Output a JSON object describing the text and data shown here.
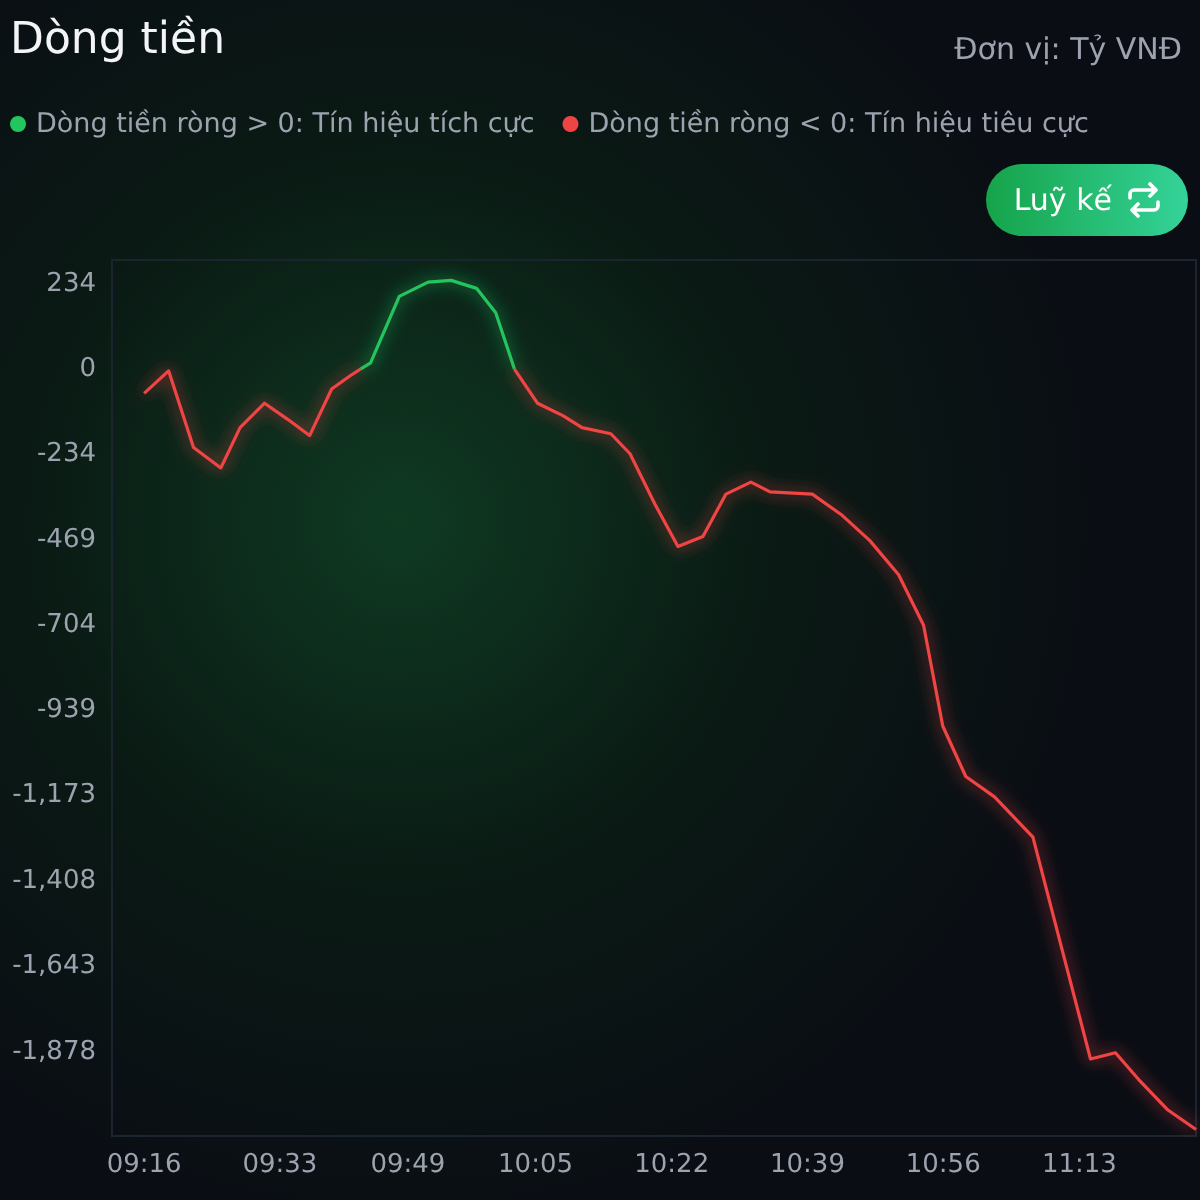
{
  "chart_data": {
    "type": "line",
    "title": "Dòng tiền",
    "annotations": [
      "Đơn vị: Tỷ VNĐ",
      "Luỹ kế"
    ],
    "series": [
      {
        "name": "Dòng tiền ròng > 0: Tín hiệu tích cực",
        "color": "#22c55e",
        "x": [
          9.718,
          9.739,
          9.799,
          9.859,
          9.907,
          9.96,
          10.0,
          10.039
        ],
        "values": [
          0,
          17,
          200,
          239,
          244,
          222,
          155,
          0
        ]
      },
      {
        "name": "Dòng tiền ròng < 0: Tín hiệu tiêu cực",
        "color": "#ef4444",
        "x": [
          9.267,
          9.318,
          9.37,
          9.427,
          9.467,
          9.518,
          9.567,
          9.612,
          9.658,
          9.698,
          9.718,
          9.9,
          10.039,
          10.087,
          10.14,
          10.18,
          10.24,
          10.28,
          10.332,
          10.38,
          10.432,
          10.48,
          10.532,
          10.572,
          10.66,
          10.72,
          10.78,
          10.84,
          10.892,
          10.932,
          10.98,
          11.04,
          11.12,
          11.18,
          11.24,
          11.292,
          11.34,
          11.4,
          11.46
        ],
        "values": [
          -67,
          -5,
          -216,
          -272,
          -161,
          -94,
          -139,
          -183,
          -55,
          -17,
          0,
          null,
          0,
          -94,
          -128,
          -161,
          -178,
          -233,
          -372,
          -488,
          -461,
          -344,
          -311,
          -338,
          -344,
          -400,
          -472,
          -566,
          -705,
          -982,
          -1121,
          -1177,
          -1288,
          -1593,
          -1898,
          -1881,
          -1954,
          -2037,
          -2092
        ]
      }
    ],
    "xlim": [
      9.2,
      11.46
    ],
    "xticks": [
      {
        "value": 9.267,
        "label": "09:16"
      },
      {
        "value": 9.55,
        "label": "09:33"
      },
      {
        "value": 9.817,
        "label": "09:49"
      },
      {
        "value": 10.083,
        "label": "10:05"
      },
      {
        "value": 10.367,
        "label": "10:22"
      },
      {
        "value": 10.65,
        "label": "10:39"
      },
      {
        "value": 10.933,
        "label": "10:56"
      },
      {
        "value": 11.217,
        "label": "11:13"
      }
    ],
    "ylim": [
      -2110,
      300
    ],
    "yticks": [
      234,
      0,
      -234,
      -469,
      -704,
      -939,
      {
        "value": -1173,
        "label": "-1,173"
      },
      {
        "value": -1408,
        "label": "-1,408"
      },
      {
        "value": -1643,
        "label": "-1,643"
      },
      {
        "value": -1878,
        "label": "-1,878"
      }
    ],
    "grid": false,
    "legend": "top left",
    "marker": "none",
    "line_style": "solid"
  }
}
